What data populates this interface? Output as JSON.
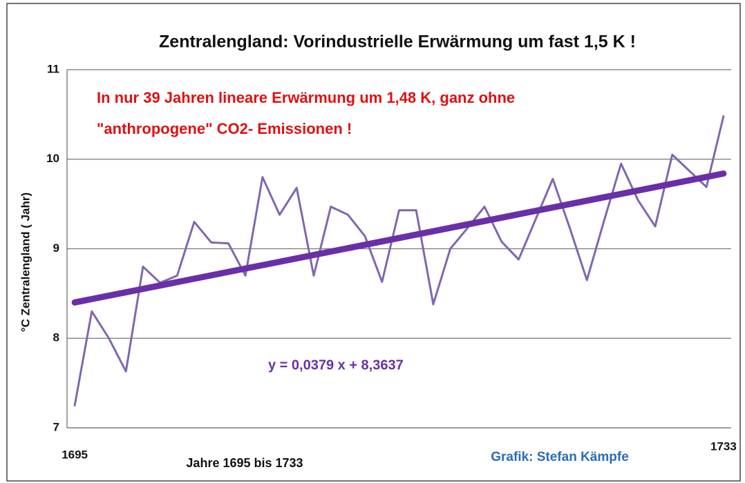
{
  "chart_data": {
    "type": "line",
    "title": "Zentralengland: Vorindustrielle Erwärmung um fast 1,5 K !",
    "ylabel": "°C Zentralengland  ( Jahr)",
    "xlabel": "Jahre 1695 bis 1733",
    "annotations": [
      "In nur 39 Jahren lineare Erwärmung um 1,48 K, ganz ohne",
      "\"anthropogene\" CO2- Emissionen !"
    ],
    "equation": "y = 0,0379 x + 8,3637",
    "credit": "Grafik: Stefan Kämpfe",
    "x": [
      1695,
      1696,
      1697,
      1698,
      1699,
      1700,
      1701,
      1702,
      1703,
      1704,
      1705,
      1706,
      1707,
      1708,
      1709,
      1710,
      1711,
      1712,
      1713,
      1714,
      1715,
      1716,
      1717,
      1718,
      1719,
      1720,
      1721,
      1722,
      1723,
      1724,
      1725,
      1726,
      1727,
      1728,
      1729,
      1730,
      1731,
      1732,
      1733
    ],
    "series": [
      {
        "color": "#8066b0",
        "values": [
          7.25,
          8.3,
          8.0,
          7.63,
          8.8,
          8.62,
          8.7,
          9.3,
          9.07,
          9.06,
          8.7,
          9.8,
          9.38,
          9.68,
          8.7,
          9.47,
          9.38,
          9.14,
          8.63,
          9.43,
          9.43,
          8.38,
          9.0,
          9.23,
          9.47,
          9.08,
          8.88,
          9.33,
          9.78,
          9.23,
          8.65,
          9.31,
          9.95,
          9.54,
          9.25,
          10.05,
          9.87,
          9.69,
          10.48
        ]
      }
    ],
    "trend": {
      "color": "#6a2fa8",
      "x": [
        1695,
        1733
      ],
      "values": [
        8.4,
        9.84
      ]
    },
    "xlim": [
      1694.55,
      1733.45
    ],
    "xticks": [
      1695,
      1733
    ],
    "ylim": [
      7,
      11
    ],
    "yticks": [
      7,
      8,
      9,
      10,
      11
    ],
    "grid": true
  }
}
